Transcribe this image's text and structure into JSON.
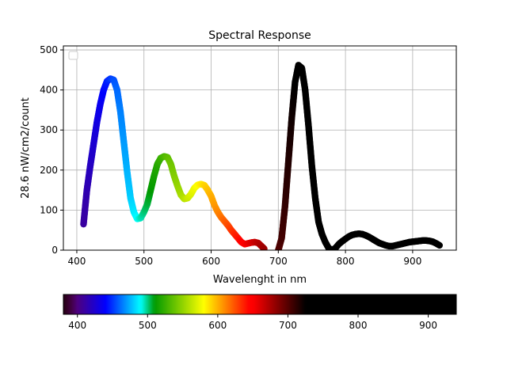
{
  "chart_data": [
    {
      "type": "scatter",
      "title": "Spectral Response",
      "xlabel": "Wavelenght in nm",
      "ylabel": "28.6 nW/cm2/count",
      "xlim": [
        380,
        965
      ],
      "ylim": [
        0,
        510
      ],
      "xticks": [
        400,
        500,
        600,
        700,
        800,
        900
      ],
      "yticks": [
        0,
        100,
        200,
        300,
        400,
        500
      ],
      "grid": true,
      "legend": "upper-left (empty)",
      "marker_color_mapping": "wavelength-to-spectral-color",
      "points": [
        [
          410,
          65
        ],
        [
          415,
          150
        ],
        [
          420,
          210
        ],
        [
          425,
          265
        ],
        [
          430,
          320
        ],
        [
          435,
          365
        ],
        [
          440,
          400
        ],
        [
          445,
          422
        ],
        [
          450,
          428
        ],
        [
          455,
          425
        ],
        [
          460,
          400
        ],
        [
          465,
          345
        ],
        [
          470,
          270
        ],
        [
          475,
          195
        ],
        [
          480,
          130
        ],
        [
          485,
          95
        ],
        [
          490,
          78
        ],
        [
          495,
          80
        ],
        [
          500,
          95
        ],
        [
          505,
          115
        ],
        [
          510,
          150
        ],
        [
          515,
          185
        ],
        [
          520,
          215
        ],
        [
          525,
          230
        ],
        [
          530,
          234
        ],
        [
          535,
          232
        ],
        [
          540,
          215
        ],
        [
          545,
          185
        ],
        [
          550,
          160
        ],
        [
          555,
          138
        ],
        [
          560,
          128
        ],
        [
          565,
          130
        ],
        [
          570,
          140
        ],
        [
          575,
          155
        ],
        [
          580,
          163
        ],
        [
          585,
          165
        ],
        [
          590,
          162
        ],
        [
          595,
          150
        ],
        [
          600,
          135
        ],
        [
          605,
          112
        ],
        [
          610,
          95
        ],
        [
          615,
          82
        ],
        [
          620,
          72
        ],
        [
          625,
          62
        ],
        [
          630,
          50
        ],
        [
          635,
          40
        ],
        [
          640,
          30
        ],
        [
          645,
          20
        ],
        [
          650,
          15
        ],
        [
          655,
          17
        ],
        [
          660,
          19
        ],
        [
          665,
          20
        ],
        [
          670,
          18
        ],
        [
          675,
          10
        ],
        [
          680,
          2
        ],
        [
          700,
          0
        ],
        [
          705,
          30
        ],
        [
          710,
          110
        ],
        [
          715,
          220
        ],
        [
          720,
          330
        ],
        [
          725,
          420
        ],
        [
          730,
          462
        ],
        [
          735,
          455
        ],
        [
          740,
          400
        ],
        [
          745,
          310
        ],
        [
          750,
          210
        ],
        [
          755,
          130
        ],
        [
          760,
          70
        ],
        [
          765,
          40
        ],
        [
          770,
          20
        ],
        [
          775,
          5
        ],
        [
          780,
          0
        ],
        [
          785,
          5
        ],
        [
          790,
          15
        ],
        [
          795,
          22
        ],
        [
          800,
          28
        ],
        [
          805,
          34
        ],
        [
          810,
          38
        ],
        [
          815,
          40
        ],
        [
          820,
          41
        ],
        [
          825,
          40
        ],
        [
          830,
          37
        ],
        [
          835,
          33
        ],
        [
          840,
          28
        ],
        [
          845,
          23
        ],
        [
          850,
          18
        ],
        [
          855,
          15
        ],
        [
          860,
          12
        ],
        [
          865,
          10
        ],
        [
          870,
          10
        ],
        [
          875,
          12
        ],
        [
          880,
          14
        ],
        [
          885,
          16
        ],
        [
          890,
          18
        ],
        [
          895,
          20
        ],
        [
          900,
          21
        ],
        [
          905,
          22
        ],
        [
          910,
          23
        ],
        [
          915,
          24
        ],
        [
          920,
          24
        ],
        [
          925,
          23
        ],
        [
          930,
          21
        ],
        [
          935,
          17
        ],
        [
          940,
          12
        ]
      ]
    },
    {
      "type": "colorbar",
      "range": [
        380,
        940
      ],
      "ticks": [
        400,
        500,
        600,
        700,
        800,
        900
      ],
      "colormap": "visible-spectrum"
    }
  ]
}
